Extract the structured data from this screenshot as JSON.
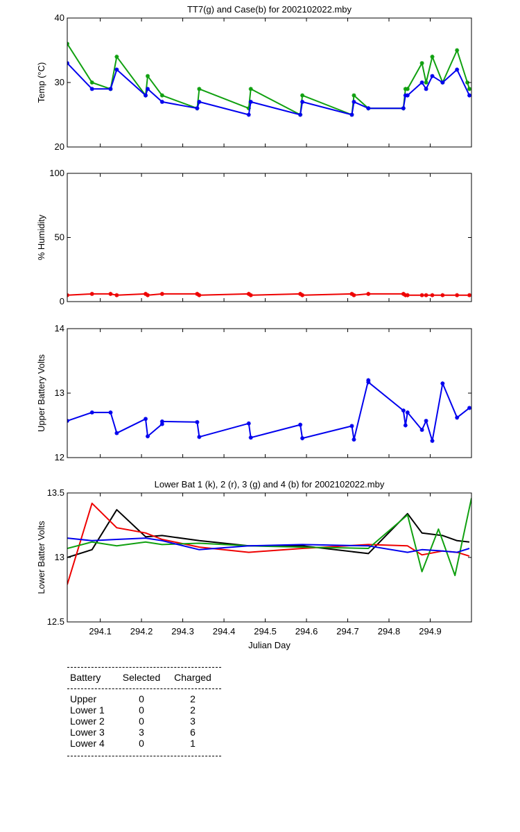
{
  "chart_data": [
    {
      "type": "line",
      "title": "TT7(g) and Case(b) for 2002102022.mby",
      "xlabel": "",
      "ylabel": "Temp  (°C)",
      "xlim": [
        294.02,
        295.0
      ],
      "ylim": [
        20,
        40
      ],
      "yticks": [
        20,
        30,
        40
      ],
      "ytick_labels": [
        "20",
        "30",
        "40"
      ],
      "series": [
        {
          "name": "TT7",
          "color": "#10a010",
          "marker": "*",
          "x": [
            294.02,
            294.08,
            294.125,
            294.14,
            294.21,
            294.215,
            294.25,
            294.335,
            294.34,
            294.46,
            294.465,
            294.585,
            294.59,
            294.71,
            294.715,
            294.75,
            294.835,
            294.84,
            294.845,
            294.88,
            294.89,
            294.905,
            294.93,
            294.965,
            294.99,
            294.995
          ],
          "y": [
            36,
            30,
            29,
            34,
            28,
            31,
            28,
            26,
            29,
            26,
            29,
            25,
            28,
            25,
            28,
            26,
            26,
            29,
            29,
            33,
            30,
            34,
            30,
            35,
            30,
            29
          ]
        },
        {
          "name": "Case",
          "color": "#0000ee",
          "marker": "*",
          "x": [
            294.02,
            294.08,
            294.125,
            294.14,
            294.21,
            294.215,
            294.25,
            294.335,
            294.34,
            294.46,
            294.465,
            294.585,
            294.59,
            294.71,
            294.715,
            294.75,
            294.835,
            294.84,
            294.845,
            294.88,
            294.89,
            294.905,
            294.93,
            294.965,
            294.995
          ],
          "y": [
            33,
            29,
            29,
            32,
            28,
            29,
            27,
            26,
            27,
            25,
            27,
            25,
            27,
            25,
            27,
            26,
            26,
            28,
            28,
            30,
            29,
            31,
            30,
            32,
            28
          ]
        }
      ]
    },
    {
      "type": "line",
      "title": "",
      "xlabel": "",
      "ylabel": "% Humidity",
      "xlim": [
        294.02,
        295.0
      ],
      "ylim": [
        0,
        100
      ],
      "yticks": [
        0,
        50,
        100
      ],
      "ytick_labels": [
        "0",
        "50",
        "100"
      ],
      "series": [
        {
          "name": "Humidity",
          "color": "#ee0000",
          "marker": "*",
          "x": [
            294.02,
            294.08,
            294.125,
            294.14,
            294.21,
            294.215,
            294.25,
            294.335,
            294.34,
            294.46,
            294.465,
            294.585,
            294.59,
            294.71,
            294.715,
            294.75,
            294.835,
            294.84,
            294.845,
            294.88,
            294.89,
            294.905,
            294.93,
            294.965,
            294.995
          ],
          "y": [
            5,
            6,
            6,
            5,
            6,
            5,
            6,
            6,
            5,
            6,
            5,
            6,
            5,
            6,
            5,
            6,
            6,
            5,
            5,
            5,
            5,
            5,
            5,
            5,
            5
          ]
        }
      ]
    },
    {
      "type": "line",
      "title": "",
      "xlabel": "",
      "ylabel": "Upper Battery Volts",
      "xlim": [
        294.02,
        295.0
      ],
      "ylim": [
        12,
        14
      ],
      "yticks": [
        12,
        13,
        14
      ],
      "ytick_labels": [
        "12",
        "13",
        "14"
      ],
      "series": [
        {
          "name": "Upper",
          "color": "#0000ee",
          "marker": "*",
          "x": [
            294.02,
            294.08,
            294.125,
            294.14,
            294.21,
            294.215,
            294.25,
            294.25,
            294.335,
            294.34,
            294.46,
            294.465,
            294.585,
            294.59,
            294.71,
            294.715,
            294.75,
            294.75,
            294.835,
            294.84,
            294.845,
            294.88,
            294.89,
            294.905,
            294.93,
            294.965,
            294.995
          ],
          "y": [
            12.57,
            12.7,
            12.7,
            12.38,
            12.6,
            12.33,
            12.52,
            12.56,
            12.55,
            12.32,
            12.53,
            12.31,
            12.51,
            12.3,
            12.49,
            12.28,
            13.2,
            13.17,
            12.73,
            12.5,
            12.7,
            12.43,
            12.57,
            12.26,
            13.15,
            12.62,
            12.77
          ]
        }
      ]
    },
    {
      "type": "line",
      "title": "Lower Bat 1 (k), 2 (r), 3 (g) and 4 (b) for 2002102022.mby",
      "xlabel": "Julian Day",
      "ylabel": "Lower Batter Volts",
      "xlim": [
        294.02,
        295.0
      ],
      "ylim": [
        12.5,
        13.5
      ],
      "yticks": [
        12.5,
        13,
        13.5
      ],
      "ytick_labels": [
        "12.5",
        "13",
        "13.5"
      ],
      "xticks": [
        294.1,
        294.2,
        294.3,
        294.4,
        294.5,
        294.6,
        294.7,
        294.8,
        294.9
      ],
      "xtick_labels": [
        "294.1",
        "294.2",
        "294.3",
        "294.4",
        "294.5",
        "294.6",
        "294.7",
        "294.8",
        "294.9"
      ],
      "series": [
        {
          "name": "Lower 1",
          "color": "#000000",
          "x": [
            294.02,
            294.08,
            294.14,
            294.21,
            294.25,
            294.34,
            294.46,
            294.59,
            294.75,
            294.845,
            294.88,
            294.93,
            294.965,
            294.995
          ],
          "y": [
            13.0,
            13.06,
            13.37,
            13.16,
            13.17,
            13.13,
            13.09,
            13.09,
            13.03,
            13.34,
            13.19,
            13.17,
            13.13,
            13.12
          ]
        },
        {
          "name": "Lower 2",
          "color": "#ee0000",
          "x": [
            294.02,
            294.08,
            294.14,
            294.21,
            294.25,
            294.34,
            294.46,
            294.59,
            294.75,
            294.845,
            294.88,
            294.93,
            294.965,
            294.995
          ],
          "y": [
            12.79,
            13.42,
            13.23,
            13.19,
            13.14,
            13.08,
            13.04,
            13.07,
            13.1,
            13.09,
            13.02,
            13.05,
            13.04,
            13.01
          ]
        },
        {
          "name": "Lower 3",
          "color": "#10a010",
          "x": [
            294.02,
            294.08,
            294.14,
            294.21,
            294.25,
            294.34,
            294.46,
            294.59,
            294.75,
            294.845,
            294.88,
            294.92,
            294.96,
            295.0
          ],
          "y": [
            13.07,
            13.12,
            13.09,
            13.12,
            13.1,
            13.11,
            13.09,
            13.08,
            13.07,
            13.33,
            12.89,
            13.22,
            12.86,
            13.46
          ]
        },
        {
          "name": "Lower 4",
          "color": "#0000ee",
          "x": [
            294.02,
            294.08,
            294.14,
            294.21,
            294.25,
            294.34,
            294.46,
            294.59,
            294.75,
            294.845,
            294.88,
            294.93,
            294.965,
            294.995
          ],
          "y": [
            13.15,
            13.13,
            13.14,
            13.15,
            13.13,
            13.06,
            13.09,
            13.1,
            13.09,
            13.04,
            13.06,
            13.05,
            13.04,
            13.07
          ]
        }
      ]
    }
  ],
  "battery_table": {
    "headers": [
      "Battery",
      "Selected",
      "Charged"
    ],
    "rows": [
      {
        "battery": "Upper",
        "selected": "0",
        "charged": "2"
      },
      {
        "battery": "Lower 1",
        "selected": "0",
        "charged": "2"
      },
      {
        "battery": "Lower 2",
        "selected": "0",
        "charged": "3"
      },
      {
        "battery": "Lower 3",
        "selected": "3",
        "charged": "6"
      },
      {
        "battery": "Lower 4",
        "selected": "0",
        "charged": "1"
      }
    ]
  }
}
